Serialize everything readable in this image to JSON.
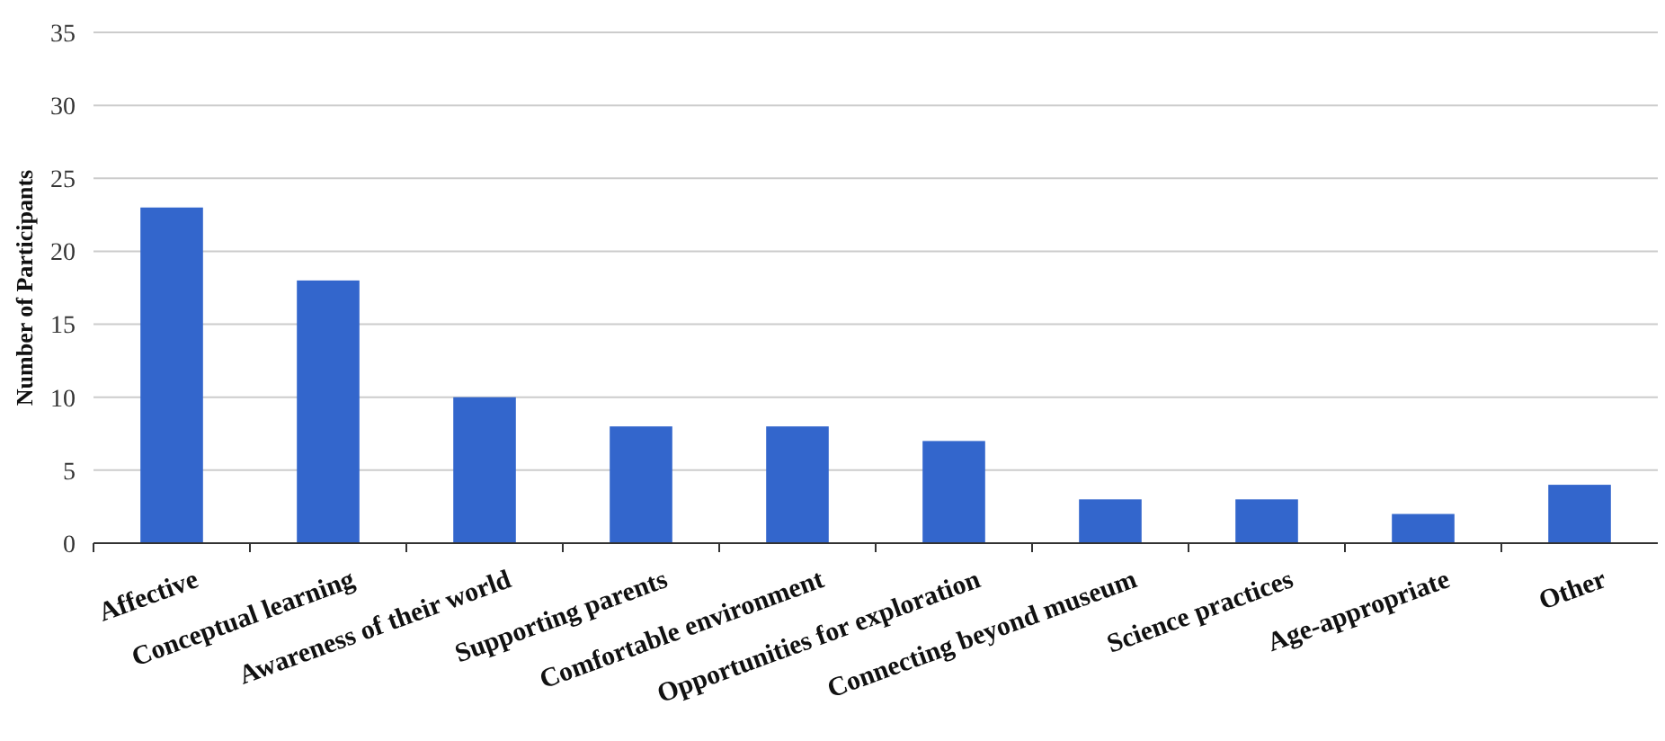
{
  "chart_data": {
    "type": "bar",
    "ylabel": "Number of Participants",
    "categories": [
      "Affective",
      "Conceptual learning",
      "Awareness of their world",
      "Supporting parents",
      "Comfortable environment",
      "Opportunities for exploration",
      "Connecting beyond museum",
      "Science practices",
      "Age-appropriate",
      "Other"
    ],
    "values": [
      23,
      18,
      10,
      8,
      8,
      7,
      3,
      3,
      2,
      4
    ],
    "color": "#3366cc",
    "ylim": [
      0,
      35
    ],
    "yticks": [
      0,
      5,
      10,
      15,
      20,
      25,
      30,
      35
    ],
    "grid": "y"
  }
}
